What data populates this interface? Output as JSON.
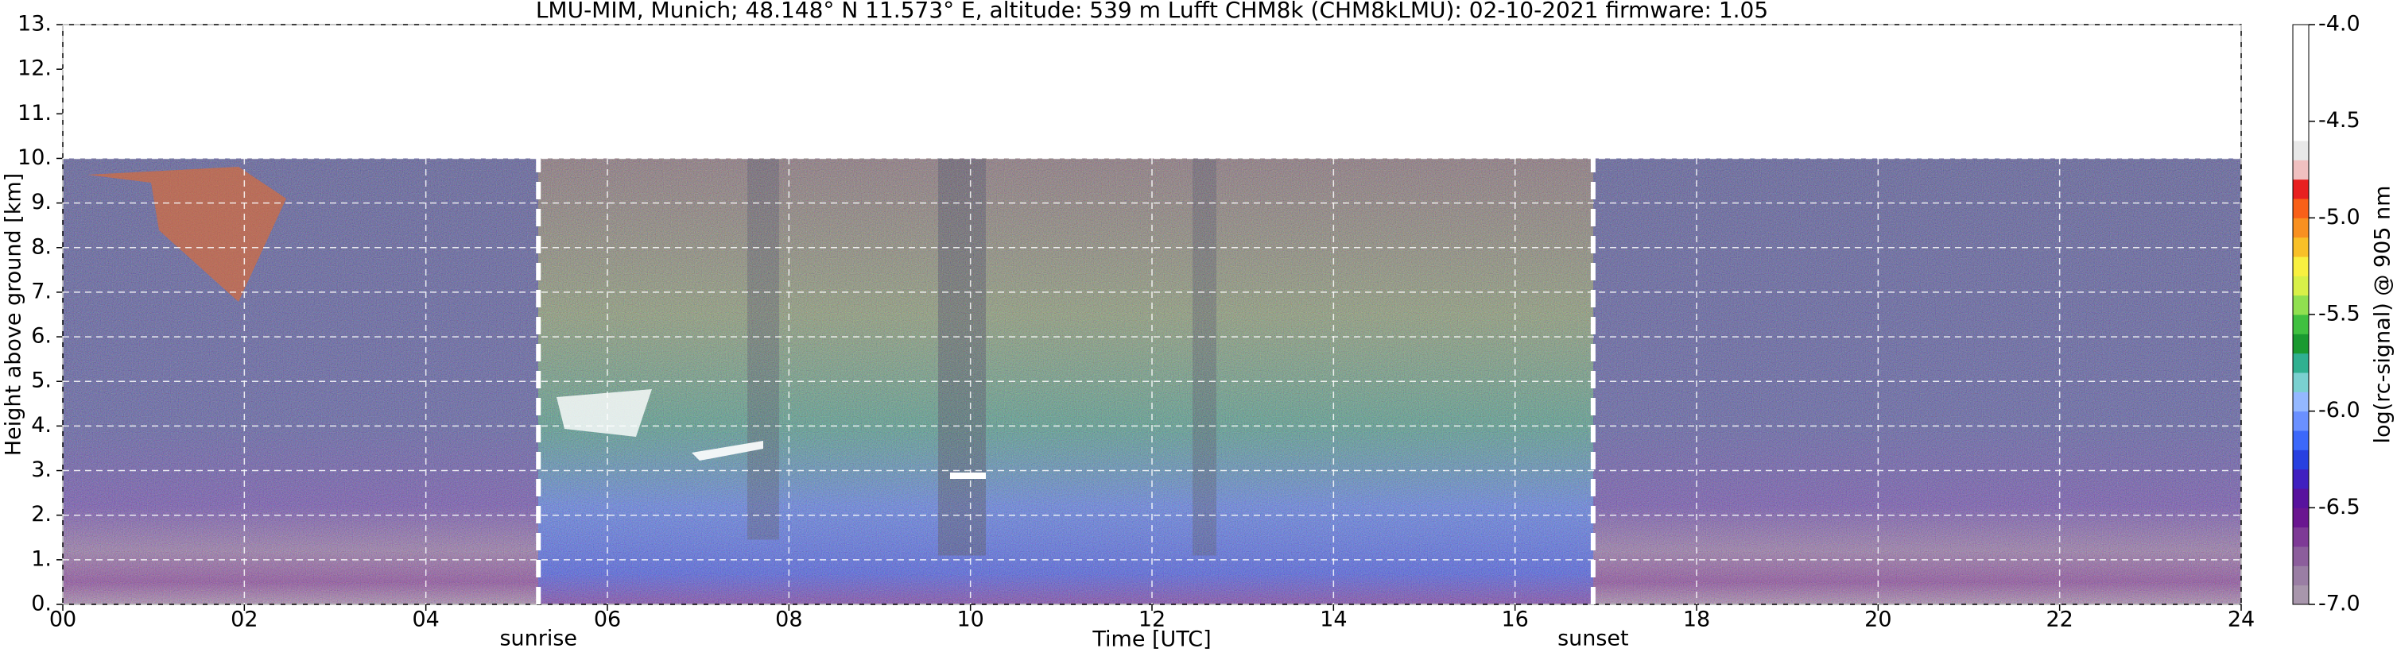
{
  "chart_data": {
    "type": "heatmap",
    "title": "LMU-MIM, Munich; 48.148° N 11.573° E, altitude: 539 m    Lufft CHM8k (CHM8kLMU): 02-10-2021    firmware: 1.05",
    "x_label": "Time [UTC]",
    "y_label": "Height above ground [km]",
    "xlim": [
      0,
      24
    ],
    "xticks": [
      {
        "value": 0,
        "label": "00"
      },
      {
        "value": 2,
        "label": "02"
      },
      {
        "value": 4,
        "label": "04"
      },
      {
        "value": 6,
        "label": "06"
      },
      {
        "value": 8,
        "label": "08"
      },
      {
        "value": 10,
        "label": "10"
      },
      {
        "value": 12,
        "label": "12"
      },
      {
        "value": 14,
        "label": "14"
      },
      {
        "value": 16,
        "label": "16"
      },
      {
        "value": 18,
        "label": "18"
      },
      {
        "value": 20,
        "label": "20"
      },
      {
        "value": 22,
        "label": "22"
      },
      {
        "value": 24,
        "label": "24"
      }
    ],
    "ylim": [
      0,
      13
    ],
    "yticks": [
      {
        "value": 0,
        "label": "0."
      },
      {
        "value": 1,
        "label": "1."
      },
      {
        "value": 2,
        "label": "2."
      },
      {
        "value": 3,
        "label": "3."
      },
      {
        "value": 4,
        "label": "4."
      },
      {
        "value": 5,
        "label": "5."
      },
      {
        "value": 6,
        "label": "6."
      },
      {
        "value": 7,
        "label": "7."
      },
      {
        "value": 8,
        "label": "8."
      },
      {
        "value": 9,
        "label": "9."
      },
      {
        "value": 10,
        "label": "10."
      },
      {
        "value": 11,
        "label": "11."
      },
      {
        "value": 12,
        "label": "12."
      },
      {
        "value": 13,
        "label": "13."
      }
    ],
    "grid": true,
    "annotations": [
      {
        "x": 5.24,
        "label": "sunrise"
      },
      {
        "x": 16.86,
        "label": "sunset"
      }
    ],
    "colorbar": {
      "label": "log(rc-signal) @ 905 nm",
      "lim": [
        -7,
        -4
      ],
      "ticks": [
        {
          "value": -4,
          "label": "-4.0"
        },
        -4.5,
        {
          "value": -5,
          "label": "-5.0"
        },
        -5.5,
        {
          "value": -6,
          "label": "-6.0"
        },
        -6.5,
        {
          "value": -7,
          "label": "-7.0"
        }
      ],
      "colors": [
        "#a896ac",
        "#9a7ea4",
        "#8c5e9c",
        "#7e3a96",
        "#6a1690",
        "#58129e",
        "#4020c0",
        "#2840e0",
        "#3c68fa",
        "#6a90ff",
        "#94b8ff",
        "#7ad0d0",
        "#30b090",
        "#1a9a30",
        "#40c040",
        "#90e050",
        "#d8f048",
        "#f8f040",
        "#f8c028",
        "#f89020",
        "#f86018",
        "#e82020",
        "#f0c0c0",
        "#e8e8e8",
        "#ffffff",
        "#ffffff",
        "#ffffff",
        "#ffffff",
        "#ffffff",
        "#ffffff"
      ]
    }
  }
}
